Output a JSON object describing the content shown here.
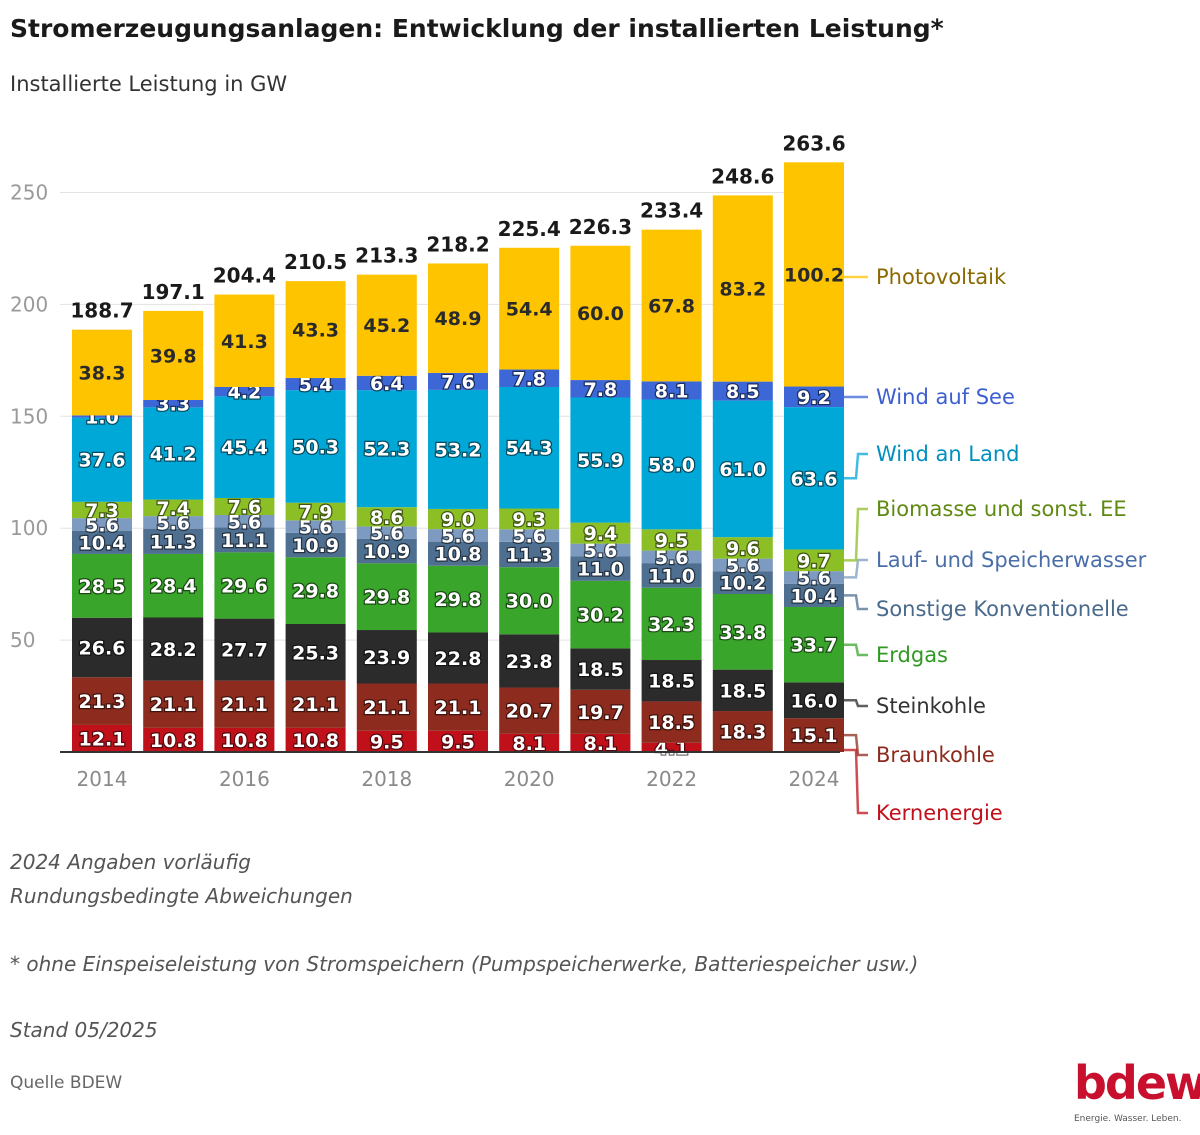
{
  "title": "Stromerzeugungsanlagen: Entwicklung der installierten Leistung*",
  "subtitle": "Installierte Leistung in GW",
  "notes": [
    "2024 Angaben vorläufig",
    "Rundungsbedingte Abweichungen",
    "* ohne Einspeiseleistung von Stromspeichern (Pumpspeicherwerke, Batteriespeicher usw.)",
    "Stand 05/2025"
  ],
  "source": "Quelle BDEW",
  "logo": {
    "word": "bdew",
    "tagline": "Energie. Wasser. Leben."
  },
  "chart_data": {
    "type": "bar",
    "stacked": true,
    "categories": [
      "2014",
      "2015",
      "2016",
      "2017",
      "2018",
      "2019",
      "2020",
      "2021",
      "2022",
      "2023",
      "2024"
    ],
    "x_tick_labels": [
      "2014",
      "",
      "2016",
      "",
      "2018",
      "",
      "2020",
      "",
      "2022",
      "",
      "2024"
    ],
    "ylim": [
      0,
      265
    ],
    "yticks": [
      50,
      100,
      150,
      200,
      250
    ],
    "grid": true,
    "legend_position": "right",
    "totals": [
      "188.7",
      "197.1",
      "204.4",
      "210.5",
      "213.3",
      "218.2",
      "225.4",
      "226.3",
      "233.4",
      "248.6",
      "263.6"
    ],
    "series": [
      {
        "name": "Kernenergie",
        "color": "#c0101a",
        "legend_color": "#c0101a",
        "values": [
          12.1,
          10.8,
          10.8,
          10.8,
          9.5,
          9.5,
          8.1,
          8.1,
          4.1,
          0.0,
          0.0
        ]
      },
      {
        "name": "Braunkohle",
        "color": "#8c2b1e",
        "legend_color": "#8c2b1e",
        "values": [
          21.3,
          21.1,
          21.1,
          21.1,
          21.1,
          21.1,
          20.7,
          19.7,
          18.5,
          18.3,
          15.1
        ]
      },
      {
        "name": "Steinkohle",
        "color": "#2b2b2b",
        "legend_color": "#333333",
        "values": [
          26.6,
          28.2,
          27.7,
          25.3,
          23.9,
          22.8,
          23.8,
          18.5,
          18.5,
          18.5,
          16.0
        ]
      },
      {
        "name": "Erdgas",
        "color": "#3aa52b",
        "legend_color": "#2f9a22",
        "values": [
          28.5,
          28.4,
          29.6,
          29.8,
          29.8,
          29.8,
          30.0,
          30.2,
          32.3,
          33.8,
          33.7
        ]
      },
      {
        "name": "Sonstige Konventionelle",
        "color": "#4f6f90",
        "legend_color": "#4a6a8c",
        "values": [
          10.4,
          11.3,
          11.1,
          10.9,
          10.9,
          10.8,
          11.3,
          11.0,
          11.0,
          10.2,
          10.4
        ]
      },
      {
        "name": "Lauf- und Speicherwasser",
        "color": "#7d9bc0",
        "legend_color": "#4a6ea8",
        "values": [
          5.6,
          5.6,
          5.6,
          5.6,
          5.6,
          5.6,
          5.6,
          5.6,
          5.6,
          5.6,
          5.6
        ]
      },
      {
        "name": "Biomasse und sonst. EE",
        "color": "#8cbe25",
        "legend_color": "#5f8a12",
        "values": [
          7.3,
          7.4,
          7.6,
          7.9,
          8.6,
          9.0,
          9.3,
          9.4,
          9.5,
          9.6,
          9.7
        ]
      },
      {
        "name": "Wind an Land",
        "color": "#00a8d8",
        "legend_color": "#0090bf",
        "values": [
          37.6,
          41.2,
          45.4,
          50.3,
          52.3,
          53.2,
          54.3,
          55.9,
          58.0,
          61.0,
          63.6
        ]
      },
      {
        "name": "Wind auf See",
        "color": "#3d67d6",
        "legend_color": "#3d5fd0",
        "values": [
          1.0,
          3.3,
          4.2,
          5.4,
          6.4,
          7.6,
          7.8,
          7.8,
          8.1,
          8.5,
          9.2
        ]
      },
      {
        "name": "Photovoltaik",
        "color": "#ffc400",
        "legend_color": "#8a6a00",
        "values": [
          38.3,
          39.8,
          41.3,
          43.3,
          45.2,
          48.9,
          54.4,
          60.0,
          67.8,
          83.2,
          100.2
        ]
      }
    ]
  }
}
